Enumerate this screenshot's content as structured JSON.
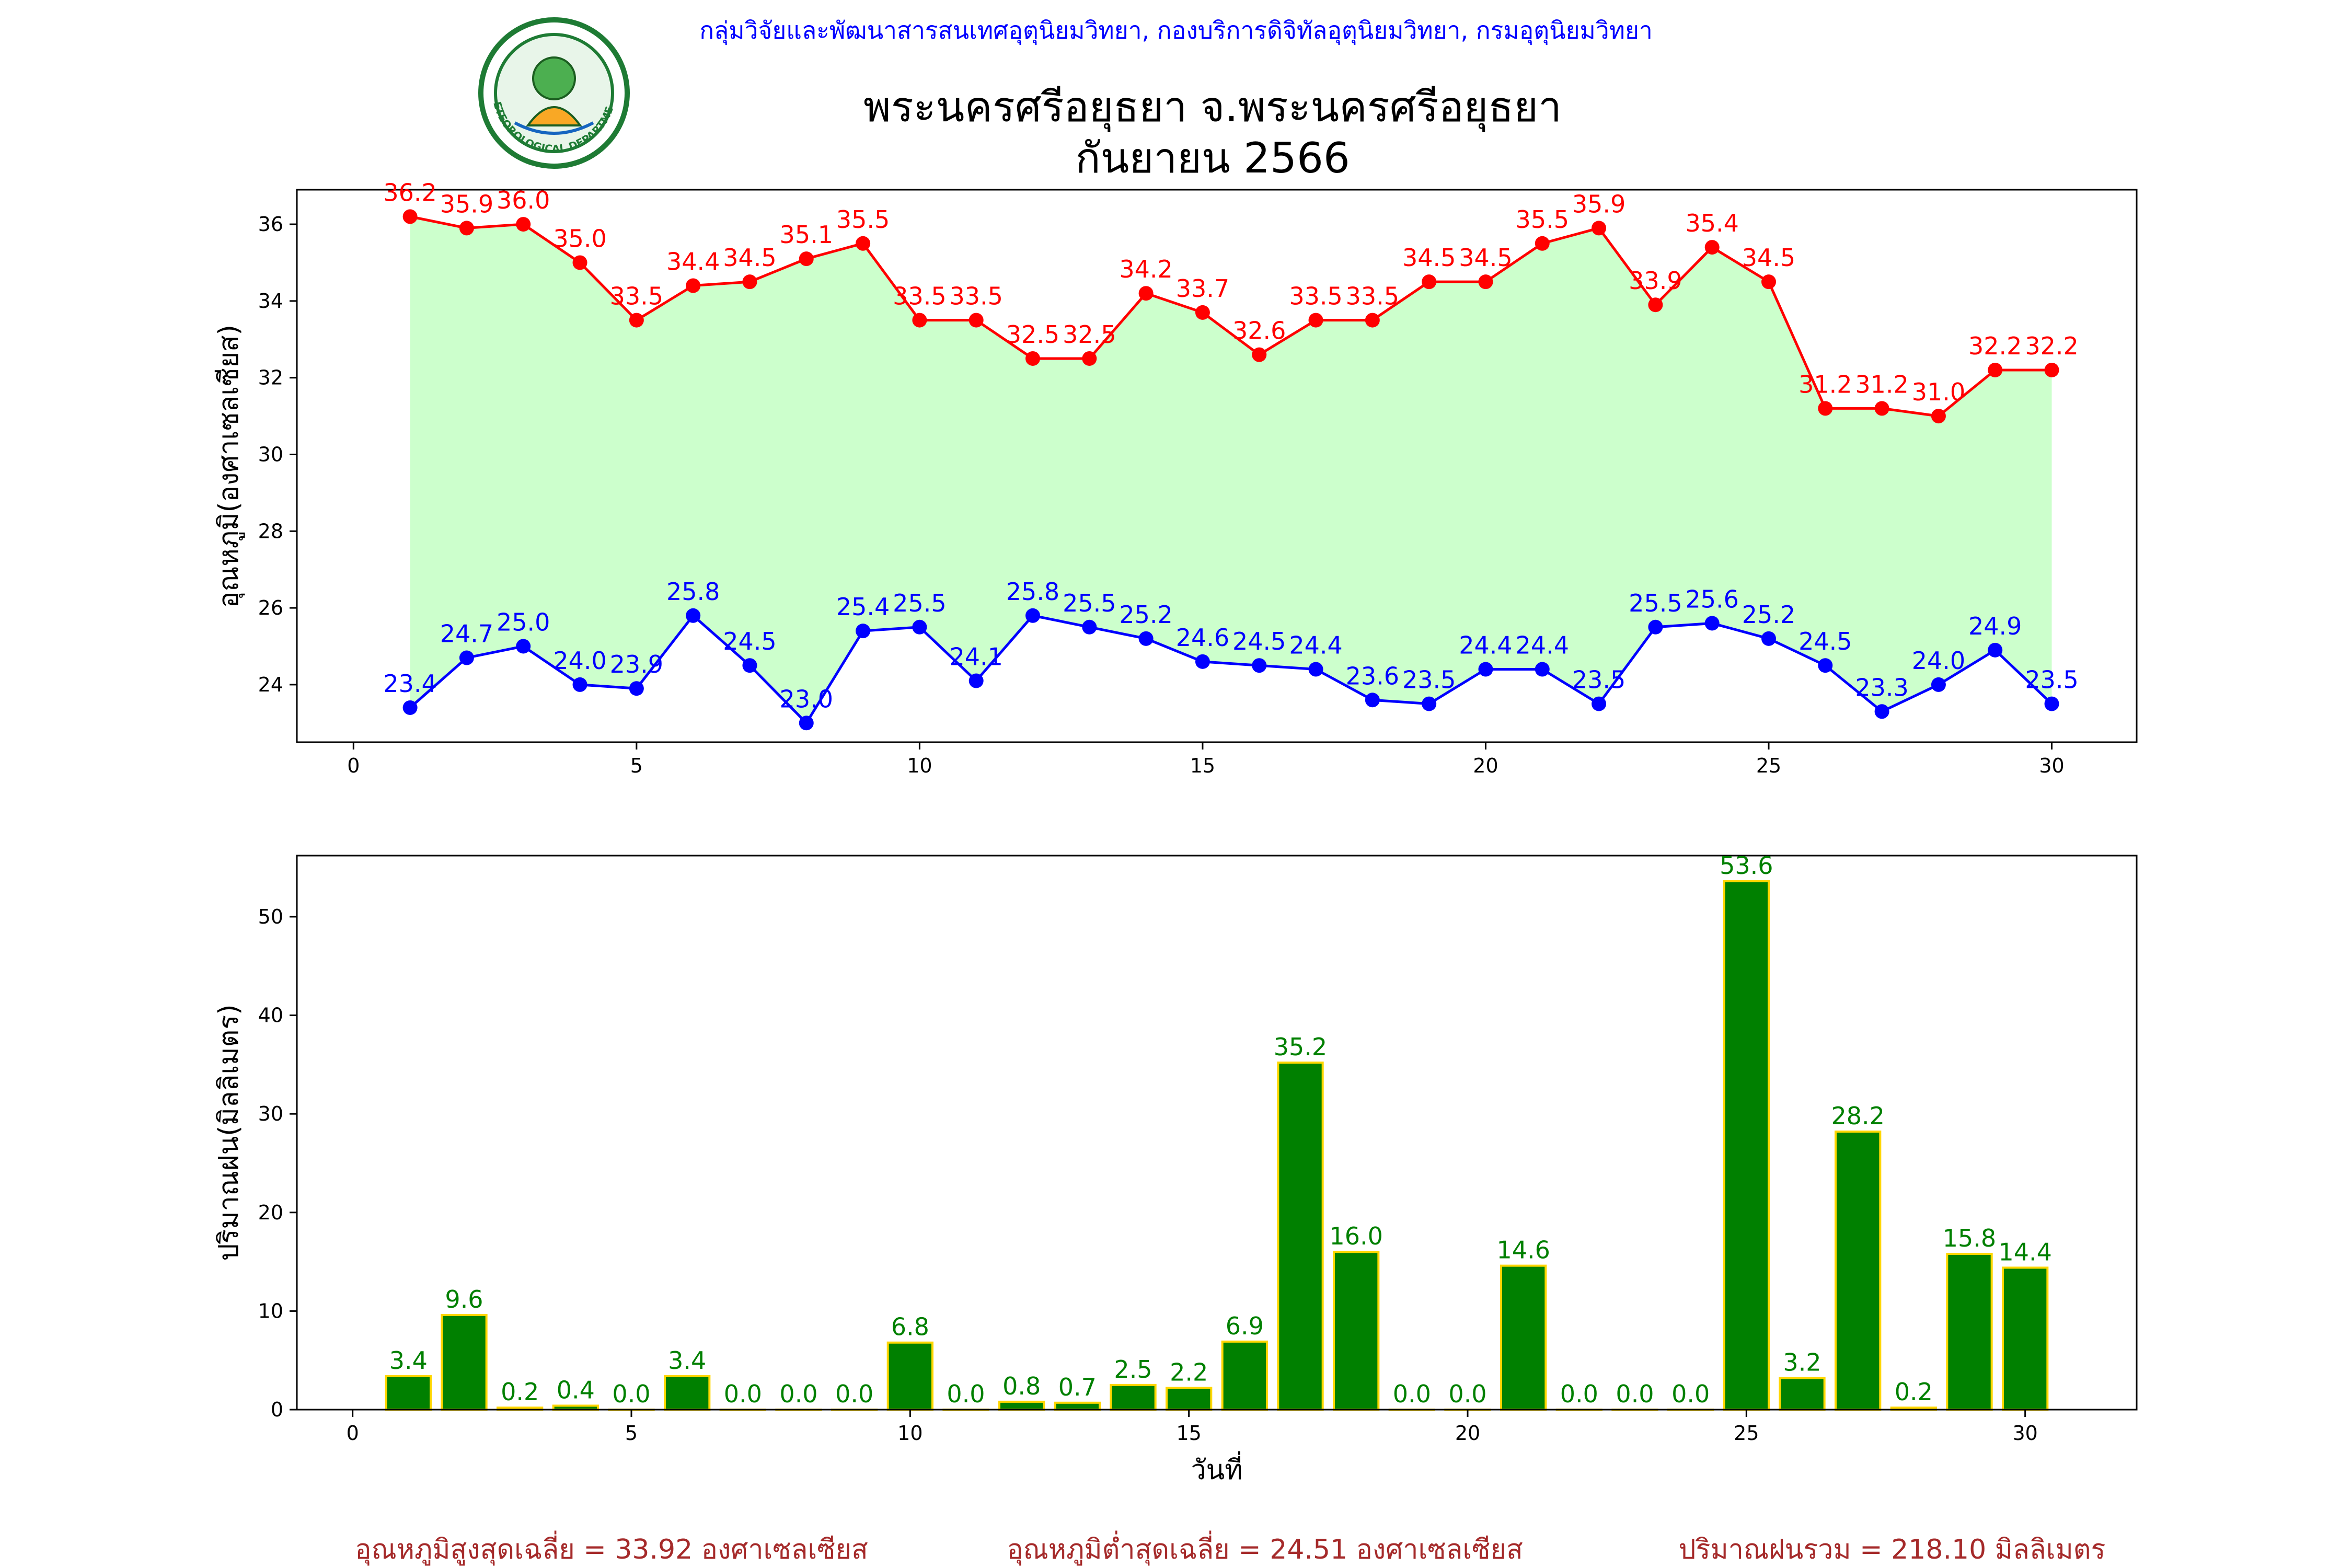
{
  "header": {
    "agency": "กลุ่มวิจัยและพัฒนาสารสนเทศอุตุนิยมวิทยา, กองบริการดิจิทัลอุตุนิยมวิทยา, กรมอุตุนิยมวิทยา",
    "title_line1": "พระนครศรีอยุธยา จ.พระนครศรีอยุธยา",
    "title_line2": "กันยายน 2566",
    "logo_text": "METEOROLOGICAL DEPARTMENT"
  },
  "colors": {
    "max_temp": "#ff0000",
    "min_temp": "#0000ff",
    "fill": "#ccffcc",
    "rain_bar": "#008000",
    "rain_edge": "#ffd700",
    "rain_label": "#008000",
    "footer": "#a52a2a",
    "agency": "#0000ff"
  },
  "chart_data": [
    {
      "type": "line",
      "ylabel": "อุณหภูมิ(องศาเซลเซียส)",
      "xlabel": "",
      "xlim": [
        -1.0,
        31.5
      ],
      "ylim": [
        22.5,
        36.9
      ],
      "xticks": [
        0,
        5,
        10,
        15,
        20,
        25,
        30
      ],
      "yticks": [
        24,
        26,
        28,
        30,
        32,
        34,
        36
      ],
      "x": [
        1,
        2,
        3,
        4,
        5,
        6,
        7,
        8,
        9,
        10,
        11,
        12,
        13,
        14,
        15,
        16,
        17,
        18,
        19,
        20,
        21,
        22,
        23,
        24,
        25,
        26,
        27,
        28,
        29,
        30
      ],
      "series": [
        {
          "values": [
            36.2,
            35.9,
            36.0,
            35.0,
            33.5,
            34.4,
            34.5,
            35.1,
            35.5,
            33.5,
            33.5,
            32.5,
            32.5,
            34.2,
            33.7,
            32.6,
            33.5,
            33.5,
            34.5,
            34.5,
            35.5,
            35.9,
            33.9,
            35.4,
            34.5,
            31.2,
            31.2,
            31.0,
            32.2,
            32.2
          ]
        },
        {
          "values": [
            23.4,
            24.7,
            25.0,
            24.0,
            23.9,
            25.8,
            24.5,
            23.0,
            25.4,
            25.5,
            24.1,
            25.8,
            25.5,
            25.2,
            24.6,
            24.5,
            24.4,
            23.6,
            23.5,
            24.4,
            24.4,
            23.5,
            25.5,
            25.6,
            25.2,
            24.5,
            23.3,
            24.0,
            24.9,
            23.5
          ]
        }
      ]
    },
    {
      "type": "bar",
      "ylabel": "ปริมาณฝน(มิลลิเมตร)",
      "xlabel": "วันที่",
      "xlim": [
        -1.0,
        32.0
      ],
      "ylim": [
        0,
        56.2
      ],
      "xticks": [
        0,
        5,
        10,
        15,
        20,
        25,
        30
      ],
      "yticks": [
        0,
        10,
        20,
        30,
        40,
        50
      ],
      "x": [
        1,
        2,
        3,
        4,
        5,
        6,
        7,
        8,
        9,
        10,
        11,
        12,
        13,
        14,
        15,
        16,
        17,
        18,
        19,
        20,
        21,
        22,
        23,
        24,
        25,
        26,
        27,
        28,
        29,
        30
      ],
      "values": [
        3.4,
        9.6,
        0.2,
        0.4,
        0.0,
        3.4,
        0.0,
        0.0,
        0.0,
        6.8,
        0.0,
        0.8,
        0.7,
        2.5,
        2.2,
        6.9,
        35.2,
        16.0,
        0.0,
        0.0,
        14.6,
        0.0,
        0.0,
        0.0,
        53.6,
        3.2,
        28.2,
        0.2,
        15.8,
        14.4
      ]
    }
  ],
  "footer": {
    "avg_max": "อุณหภูมิสูงสุดเฉลี่ย = 33.92 องศาเซลเซียส",
    "avg_min": "อุณหภูมิต่ำสุดเฉลี่ย = 24.51 องศาเซลเซียส",
    "total_rain": "ปริมาณฝนรวม = 218.10 มิลลิเมตร"
  }
}
